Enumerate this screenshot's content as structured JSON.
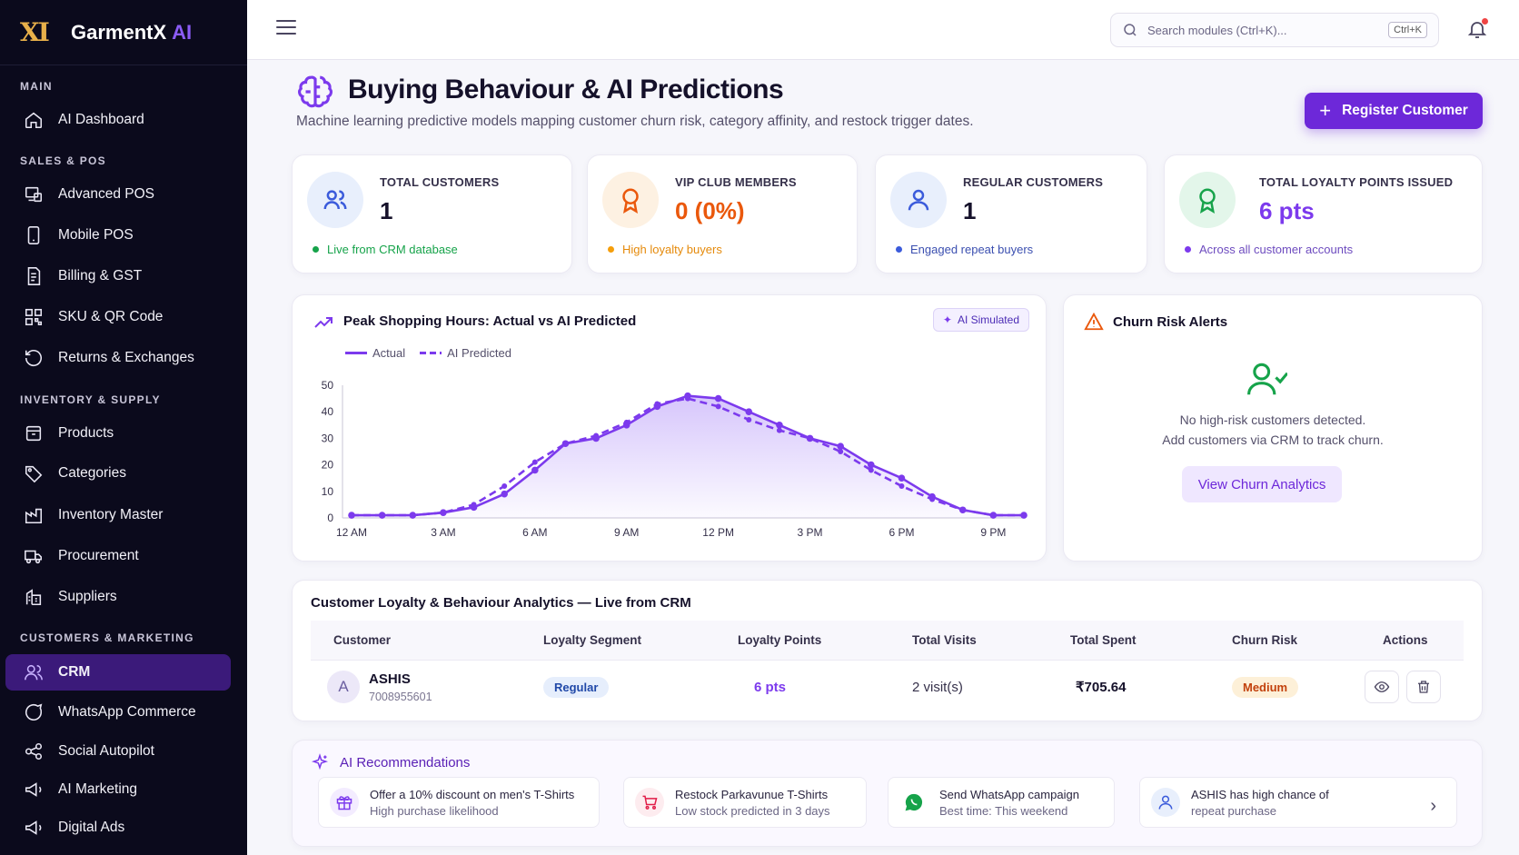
{
  "brand": {
    "logo": "XI",
    "name": "GarmentX",
    "ai": "AI"
  },
  "sidebar": {
    "sections": [
      {
        "label": "MAIN"
      },
      {
        "label": "SALES & POS"
      },
      {
        "label": "INVENTORY & SUPPLY"
      },
      {
        "label": "CUSTOMERS & MARKETING"
      }
    ],
    "items": [
      {
        "label": "AI Dashboard",
        "icon": "home-icon"
      },
      {
        "label": "Advanced POS",
        "icon": "pos-icon"
      },
      {
        "label": "Mobile POS",
        "icon": "mobile-icon"
      },
      {
        "label": "Billing & GST",
        "icon": "billing-icon"
      },
      {
        "label": "SKU & QR Code",
        "icon": "qr-icon"
      },
      {
        "label": "Returns & Exchanges",
        "icon": "returns-icon"
      },
      {
        "label": "Products",
        "icon": "box-icon"
      },
      {
        "label": "Categories",
        "icon": "tag-icon"
      },
      {
        "label": "Inventory Master",
        "icon": "factory-icon"
      },
      {
        "label": "Procurement",
        "icon": "truck-icon"
      },
      {
        "label": "Suppliers",
        "icon": "building-icon"
      },
      {
        "label": "CRM",
        "icon": "users-icon",
        "active": true
      },
      {
        "label": "WhatsApp Commerce",
        "icon": "chat-icon"
      },
      {
        "label": "Social Autopilot",
        "icon": "share-icon"
      },
      {
        "label": "AI Marketing",
        "icon": "megaphone-icon"
      },
      {
        "label": "Digital Ads",
        "icon": "megaphone-icon"
      }
    ]
  },
  "topbar": {
    "search_placeholder": "Search modules (Ctrl+K)...",
    "shortcut": "Ctrl+K"
  },
  "header": {
    "title": "Buying Behaviour & AI Predictions",
    "subtitle": "Machine learning predictive models mapping customer churn risk, category affinity, and restock trigger dates.",
    "register_label": "Register Customer"
  },
  "stats": [
    {
      "label": "TOTAL CUSTOMERS",
      "value": "1",
      "note": "Live from CRM database",
      "color": "#16a34a",
      "value_color": "#15112a",
      "icon_bg": "#e8effc",
      "icon_stroke": "#3b5bdb"
    },
    {
      "label": "VIP CLUB MEMBERS",
      "value": "0 (0%)",
      "note": "High loyalty buyers",
      "color": "#f59e0b",
      "value_color": "#ea580c",
      "icon_bg": "#fdf1e2",
      "icon_stroke": "#ea580c"
    },
    {
      "label": "REGULAR CUSTOMERS",
      "value": "1",
      "note": "Engaged repeat buyers",
      "color": "#3b5bdb",
      "value_color": "#15112a",
      "icon_bg": "#e8effc",
      "icon_stroke": "#3b5bdb"
    },
    {
      "label": "TOTAL LOYALTY POINTS ISSUED",
      "value": "6 pts",
      "note": "Across all customer accounts",
      "color": "#7c3aed",
      "value_color": "#7c3aed",
      "icon_bg": "#e3f6ea",
      "icon_stroke": "#16a34a"
    }
  ],
  "chart": {
    "title": "Peak Shopping Hours: Actual vs AI Predicted",
    "badge": "AI Simulated"
  },
  "chart_data": {
    "type": "line",
    "title": "Peak Shopping Hours: Actual vs AI Predicted",
    "xlabel": "",
    "ylabel": "",
    "ylim": [
      0,
      50
    ],
    "yticks": [
      0,
      10,
      20,
      30,
      40,
      50
    ],
    "x_tick_labels": [
      "12 AM",
      "3 AM",
      "6 AM",
      "9 AM",
      "12 PM",
      "3 PM",
      "6 PM",
      "9 PM"
    ],
    "x": [
      0,
      1,
      2,
      3,
      4,
      5,
      6,
      7,
      8,
      9,
      10,
      11,
      12,
      13,
      14,
      15,
      16,
      17,
      18,
      19,
      20,
      21,
      22
    ],
    "legend_position": "top-left",
    "series": [
      {
        "name": "Actual",
        "style": "solid",
        "color": "#7c3aed",
        "values": [
          1,
          1,
          1,
          2,
          4,
          9,
          18,
          28,
          30,
          35,
          42,
          46,
          45,
          40,
          35,
          30,
          27,
          20,
          15,
          8,
          3,
          1,
          1
        ]
      },
      {
        "name": "AI Predicted",
        "style": "dashed",
        "color": "#7c3aed",
        "values": [
          1,
          1,
          1,
          2,
          5,
          12,
          21,
          28,
          31,
          36,
          43,
          45,
          42,
          37,
          33,
          30,
          25,
          18,
          12,
          7,
          3,
          1,
          1
        ]
      }
    ]
  },
  "churn": {
    "title": "Churn Risk Alerts",
    "line1": "No high-risk customers detected.",
    "line2": "Add customers via CRM to track churn.",
    "button": "View Churn Analytics"
  },
  "table": {
    "title": "Customer Loyalty & Behaviour Analytics — Live from CRM",
    "columns": [
      "Customer",
      "Loyalty Segment",
      "Loyalty Points",
      "Total Visits",
      "Total Spent",
      "Churn Risk",
      "Actions"
    ],
    "rows": [
      {
        "initial": "A",
        "name": "ASHIS",
        "phone": "7008955601",
        "segment": "Regular",
        "points": "6 pts",
        "visits": "2 visit(s)",
        "spent": "₹705.64",
        "risk": "Medium"
      }
    ]
  },
  "recs": {
    "title": "AI Recommendations",
    "items": [
      {
        "t1": "Offer a 10% discount on men's T-Shirts",
        "t2": "High purchase likelihood",
        "icon": "gift-icon"
      },
      {
        "t1": "Restock Parkavunue T-Shirts",
        "t2": "Low stock predicted in 3 days",
        "icon": "cart-icon"
      },
      {
        "t1": "Send WhatsApp campaign",
        "t2": "Best time: This weekend",
        "icon": "whatsapp-icon"
      },
      {
        "t1": "ASHIS has high chance of",
        "t2": "repeat purchase",
        "icon": "user-icon"
      }
    ]
  }
}
